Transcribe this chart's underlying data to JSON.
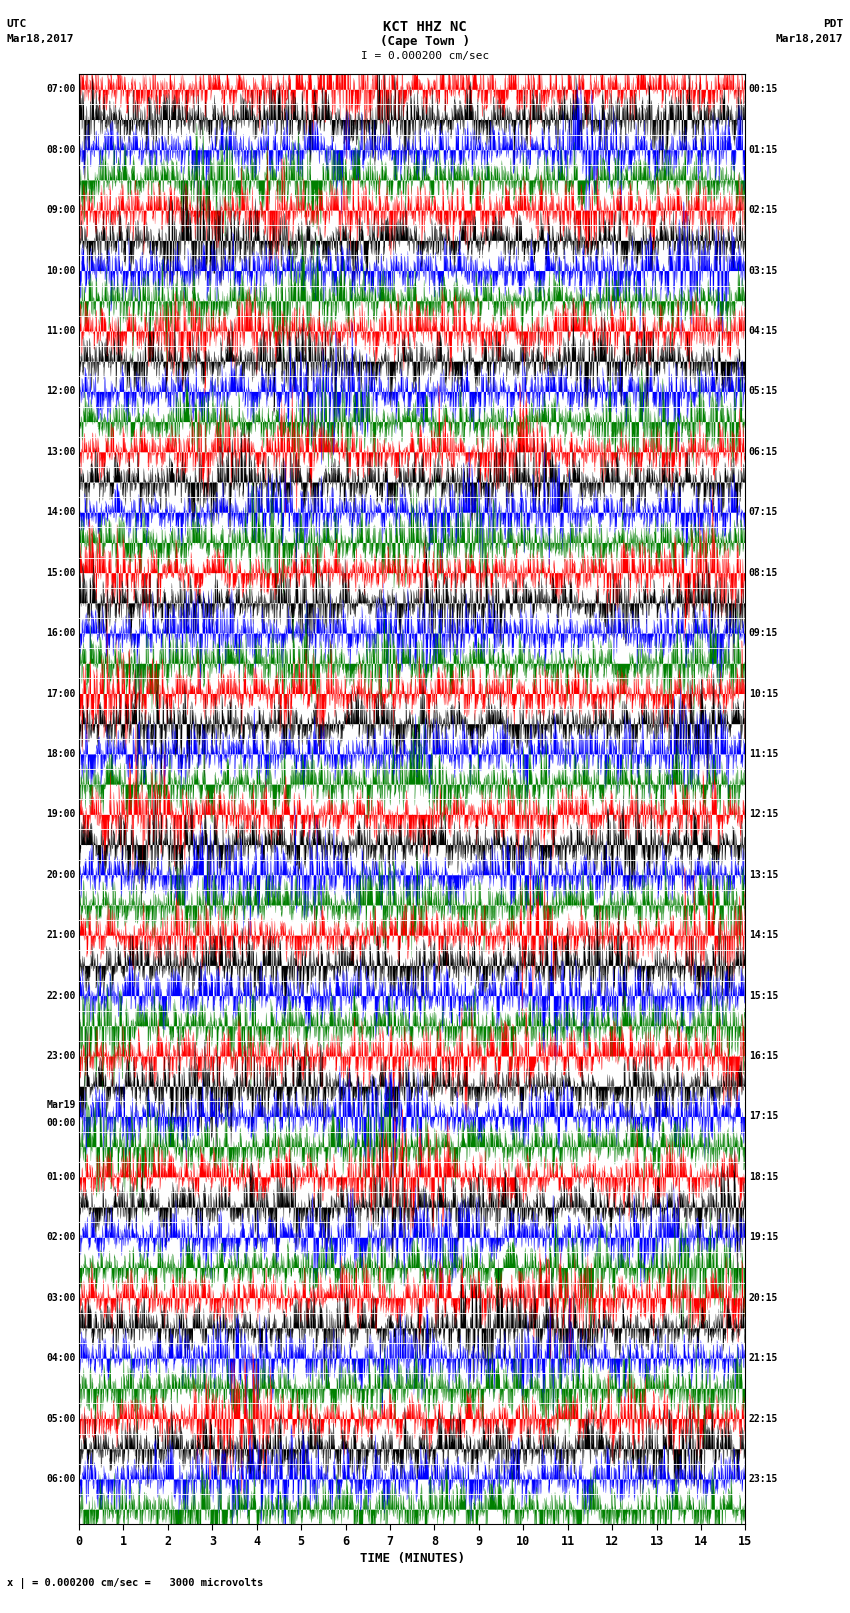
{
  "title_line1": "KCT HHZ NC",
  "title_line2": "(Cape Town )",
  "title_scale": "I = 0.000200 cm/sec",
  "left_header_line1": "UTC",
  "left_header_line2": "Mar18,2017",
  "right_header_line1": "PDT",
  "right_header_line2": "Mar18,2017",
  "xlabel": "TIME (MINUTES)",
  "scale_label": "x | = 0.000200 cm/sec =   3000 microvolts",
  "utc_labels": [
    "07:00",
    "",
    "08:00",
    "",
    "09:00",
    "",
    "10:00",
    "",
    "11:00",
    "",
    "12:00",
    "",
    "13:00",
    "",
    "14:00",
    "",
    "15:00",
    "",
    "16:00",
    "",
    "17:00",
    "",
    "18:00",
    "",
    "19:00",
    "",
    "20:00",
    "",
    "21:00",
    "",
    "22:00",
    "",
    "23:00",
    "",
    "Mar19\n00:00",
    "",
    "01:00",
    "",
    "02:00",
    "",
    "03:00",
    "",
    "04:00",
    "",
    "05:00",
    "",
    "06:00",
    ""
  ],
  "pdt_labels": [
    "00:15",
    "",
    "01:15",
    "",
    "02:15",
    "",
    "03:15",
    "",
    "04:15",
    "",
    "05:15",
    "",
    "06:15",
    "",
    "07:15",
    "",
    "08:15",
    "",
    "09:15",
    "",
    "10:15",
    "",
    "11:15",
    "",
    "12:15",
    "",
    "13:15",
    "",
    "14:15",
    "",
    "15:15",
    "",
    "16:15",
    "",
    "17:15",
    "",
    "18:15",
    "",
    "19:15",
    "",
    "20:15",
    "",
    "21:15",
    "",
    "22:15",
    "",
    "23:15",
    ""
  ],
  "n_traces": 48,
  "minutes_per_trace": 15,
  "colors_cycle": [
    "red",
    "black",
    "blue",
    "green"
  ],
  "bg_color": "white",
  "seed": 42,
  "samples_per_trace": 3000,
  "amplitude_scale": 0.48
}
